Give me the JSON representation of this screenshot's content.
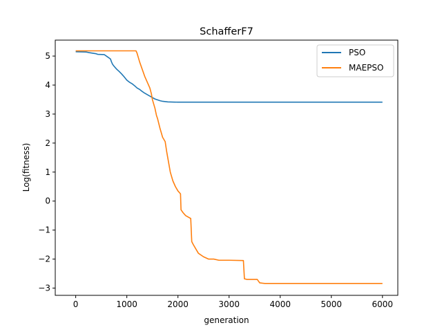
{
  "chart_data": {
    "type": "line",
    "title": "SchafferF7",
    "xlabel": "generation",
    "ylabel": "Log(fitness)",
    "xlim": [
      -400,
      6300
    ],
    "ylim": [
      -3.25,
      5.55
    ],
    "xticks": [
      0,
      1000,
      2000,
      3000,
      4000,
      5000,
      6000
    ],
    "yticks": [
      -3,
      -2,
      -1,
      0,
      1,
      2,
      3,
      4,
      5
    ],
    "xtick_labels": [
      "0",
      "1000",
      "2000",
      "3000",
      "4000",
      "5000",
      "6000"
    ],
    "ytick_labels": [
      "−3",
      "−2",
      "−1",
      "0",
      "1",
      "2",
      "3",
      "4",
      "5"
    ],
    "grid": false,
    "legend_position": "upper right",
    "series": [
      {
        "name": "PSO",
        "color": "#1f77b4",
        "x": [
          0,
          200,
          260,
          400,
          430,
          560,
          600,
          680,
          700,
          720,
          750,
          800,
          850,
          900,
          950,
          1000,
          1050,
          1100,
          1150,
          1200,
          1250,
          1300,
          1350,
          1400,
          1450,
          1500,
          1550,
          1600,
          1650,
          1700,
          1800,
          1900,
          2000,
          2500,
          3000,
          4000,
          5000,
          6000
        ],
        "y": [
          5.15,
          5.14,
          5.12,
          5.08,
          5.06,
          5.05,
          5.0,
          4.9,
          4.8,
          4.72,
          4.65,
          4.55,
          4.47,
          4.38,
          4.28,
          4.17,
          4.1,
          4.05,
          3.98,
          3.9,
          3.85,
          3.78,
          3.72,
          3.67,
          3.62,
          3.57,
          3.52,
          3.49,
          3.46,
          3.44,
          3.42,
          3.415,
          3.41,
          3.41,
          3.41,
          3.41,
          3.41,
          3.41
        ]
      },
      {
        "name": "MAEPSO",
        "color": "#ff7f0e",
        "x": [
          0,
          800,
          1180,
          1200,
          1250,
          1300,
          1350,
          1400,
          1450,
          1480,
          1500,
          1550,
          1580,
          1600,
          1650,
          1700,
          1750,
          1780,
          1800,
          1850,
          1900,
          1950,
          2000,
          2050,
          2060,
          2100,
          2150,
          2200,
          2250,
          2270,
          2300,
          2350,
          2400,
          2500,
          2600,
          2700,
          2800,
          3000,
          3280,
          3300,
          3350,
          3550,
          3600,
          3700,
          4000,
          5000,
          6000
        ],
        "y": [
          5.18,
          5.18,
          5.18,
          5.1,
          4.8,
          4.55,
          4.3,
          4.1,
          3.9,
          3.7,
          3.5,
          3.2,
          2.95,
          2.85,
          2.5,
          2.2,
          2.05,
          1.7,
          1.5,
          1.0,
          0.7,
          0.5,
          0.35,
          0.25,
          -0.3,
          -0.4,
          -0.5,
          -0.55,
          -0.6,
          -1.4,
          -1.5,
          -1.65,
          -1.8,
          -1.92,
          -2.0,
          -2.0,
          -2.04,
          -2.04,
          -2.05,
          -2.68,
          -2.7,
          -2.7,
          -2.82,
          -2.84,
          -2.84,
          -2.84,
          -2.84
        ]
      }
    ]
  }
}
